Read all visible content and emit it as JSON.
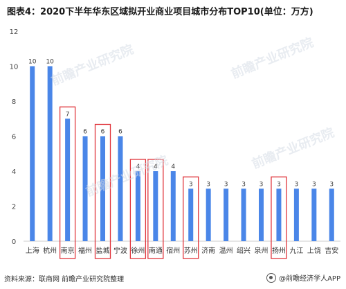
{
  "title": "图表4：2020下半年华东区域拟开业商业项目城市分布TOP10(单位：万方)",
  "source": "资料来源：联商网 前瞻产业研究院整理",
  "brand": "@前瞻经济学人APP",
  "watermark": "前瞻产业研究院",
  "colors": {
    "bar": "#4a86e8",
    "highlight_box": "#e0343a",
    "axis": "#cccccc"
  },
  "chart_data": {
    "type": "bar",
    "title": "图表4：2020下半年华东区域拟开业商业项目城市分布TOP10(单位：万方)",
    "categories": [
      "上海",
      "杭州",
      "南京",
      "福州",
      "盐城",
      "宁波",
      "徐州",
      "南通",
      "宿州",
      "苏州",
      "济南",
      "温州",
      "绍兴",
      "泉州",
      "扬州",
      "九江",
      "上饶",
      "吉安"
    ],
    "values": [
      10,
      10,
      7,
      6,
      6,
      6,
      4,
      4,
      4,
      3,
      3,
      3,
      3,
      3,
      3,
      3,
      3,
      3
    ],
    "highlighted": [
      "南京",
      "盐城",
      "徐州",
      "南通",
      "苏州",
      "扬州"
    ],
    "ylim": [
      0,
      12
    ],
    "yticks": [
      0,
      2,
      4,
      6,
      8,
      10,
      12
    ],
    "xlabel": "",
    "ylabel": "",
    "grid": false,
    "data_labels": true
  }
}
